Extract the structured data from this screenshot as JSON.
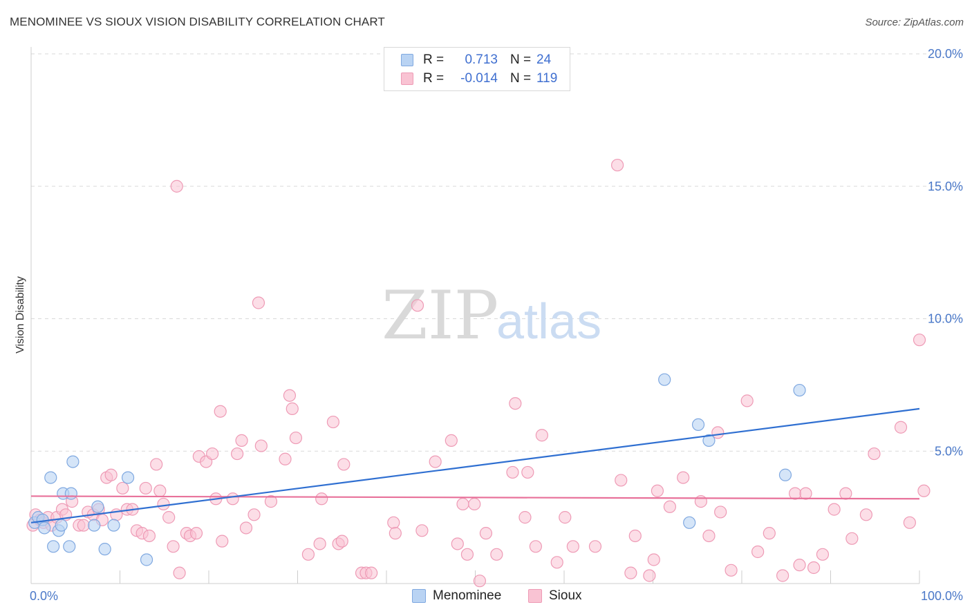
{
  "header": {
    "title": "MENOMINEE VS SIOUX VISION DISABILITY CORRELATION CHART",
    "source": "Source: ZipAtlas.com"
  },
  "watermark": {
    "zip": "ZIP",
    "atlas": "atlas"
  },
  "legend": {
    "rows": [
      {
        "r_label": "R =",
        "r_value": "0.713",
        "n_label": "N =",
        "n_value": "24"
      },
      {
        "r_label": "R =",
        "r_value": "-0.014",
        "n_label": "N =",
        "n_value": "119"
      }
    ]
  },
  "bottom_legend": {
    "menominee": "Menominee",
    "sioux": "Sioux"
  },
  "colors": {
    "menominee_fill": "#b9d3f3",
    "menominee_stroke": "#7fa8e0",
    "menominee_line": "#2f6fd1",
    "sioux_fill": "#f9c3d3",
    "sioux_stroke": "#ee9ab5",
    "sioux_line": "#e8719a",
    "grid": "#d9d9d9",
    "axis": "#cccccc",
    "tick_text": "#4a78c8"
  },
  "chart_data": {
    "type": "scatter",
    "title": "MENOMINEE VS SIOUX VISION DISABILITY CORRELATION CHART",
    "xlabel": "",
    "ylabel": "Vision Disability",
    "xlim": [
      0,
      100
    ],
    "ylim": [
      0,
      20
    ],
    "x_tick_labels": [
      "0.0%",
      "100.0%"
    ],
    "y_ticks": [
      5,
      10,
      15,
      20
    ],
    "y_tick_labels": [
      "5.0%",
      "10.0%",
      "15.0%",
      "20.0%"
    ],
    "grid": "horizontal dashed",
    "series": [
      {
        "name": "Menominee",
        "R": 0.713,
        "N": 24,
        "trend": {
          "x": [
            0,
            100
          ],
          "y": [
            2.3,
            6.6
          ]
        },
        "points": [
          {
            "x": 0.4,
            "y": 2.3
          },
          {
            "x": 0.8,
            "y": 2.5
          },
          {
            "x": 1.3,
            "y": 2.4
          },
          {
            "x": 1.5,
            "y": 2.1
          },
          {
            "x": 2.2,
            "y": 4.0
          },
          {
            "x": 2.5,
            "y": 1.4
          },
          {
            "x": 3.1,
            "y": 2.0
          },
          {
            "x": 3.4,
            "y": 2.2
          },
          {
            "x": 3.6,
            "y": 3.4
          },
          {
            "x": 4.3,
            "y": 1.4
          },
          {
            "x": 4.5,
            "y": 3.4
          },
          {
            "x": 4.7,
            "y": 4.6
          },
          {
            "x": 7.1,
            "y": 2.2
          },
          {
            "x": 7.5,
            "y": 2.9
          },
          {
            "x": 8.3,
            "y": 1.3
          },
          {
            "x": 9.3,
            "y": 2.2
          },
          {
            "x": 10.9,
            "y": 4.0
          },
          {
            "x": 13.0,
            "y": 0.9
          },
          {
            "x": 84.9,
            "y": 4.1
          },
          {
            "x": 71.3,
            "y": 7.7
          },
          {
            "x": 75.1,
            "y": 6.0
          },
          {
            "x": 76.3,
            "y": 5.4
          },
          {
            "x": 86.5,
            "y": 7.3
          },
          {
            "x": 74.1,
            "y": 2.3
          }
        ]
      },
      {
        "name": "Sioux",
        "R": -0.014,
        "N": 119,
        "trend": {
          "x": [
            0,
            100
          ],
          "y": [
            3.3,
            3.2
          ]
        },
        "points": [
          {
            "x": 0.2,
            "y": 2.2
          },
          {
            "x": 0.5,
            "y": 2.6
          },
          {
            "x": 1.0,
            "y": 2.4
          },
          {
            "x": 1.4,
            "y": 2.3
          },
          {
            "x": 1.9,
            "y": 2.5
          },
          {
            "x": 2.3,
            "y": 2.2
          },
          {
            "x": 2.9,
            "y": 2.5
          },
          {
            "x": 3.5,
            "y": 2.8
          },
          {
            "x": 3.9,
            "y": 2.6
          },
          {
            "x": 4.6,
            "y": 3.1
          },
          {
            "x": 5.4,
            "y": 2.2
          },
          {
            "x": 5.9,
            "y": 2.2
          },
          {
            "x": 6.4,
            "y": 2.7
          },
          {
            "x": 7.0,
            "y": 2.6
          },
          {
            "x": 7.6,
            "y": 2.8
          },
          {
            "x": 8.0,
            "y": 2.4
          },
          {
            "x": 8.5,
            "y": 4.0
          },
          {
            "x": 9.0,
            "y": 4.1
          },
          {
            "x": 9.6,
            "y": 2.6
          },
          {
            "x": 10.3,
            "y": 3.6
          },
          {
            "x": 10.8,
            "y": 2.8
          },
          {
            "x": 11.4,
            "y": 2.8
          },
          {
            "x": 11.9,
            "y": 2.0
          },
          {
            "x": 12.5,
            "y": 1.9
          },
          {
            "x": 12.9,
            "y": 3.6
          },
          {
            "x": 13.3,
            "y": 1.8
          },
          {
            "x": 14.1,
            "y": 4.5
          },
          {
            "x": 14.5,
            "y": 3.5
          },
          {
            "x": 14.9,
            "y": 3.0
          },
          {
            "x": 15.5,
            "y": 2.5
          },
          {
            "x": 16.0,
            "y": 1.4
          },
          {
            "x": 16.4,
            "y": 15.0
          },
          {
            "x": 16.7,
            "y": 0.4
          },
          {
            "x": 17.5,
            "y": 1.9
          },
          {
            "x": 17.9,
            "y": 1.8
          },
          {
            "x": 18.6,
            "y": 1.9
          },
          {
            "x": 18.9,
            "y": 4.8
          },
          {
            "x": 19.7,
            "y": 4.6
          },
          {
            "x": 20.4,
            "y": 4.9
          },
          {
            "x": 20.8,
            "y": 3.2
          },
          {
            "x": 21.3,
            "y": 6.5
          },
          {
            "x": 21.5,
            "y": 1.6
          },
          {
            "x": 22.7,
            "y": 3.2
          },
          {
            "x": 23.2,
            "y": 4.9
          },
          {
            "x": 23.7,
            "y": 5.4
          },
          {
            "x": 24.2,
            "y": 2.1
          },
          {
            "x": 25.1,
            "y": 2.6
          },
          {
            "x": 25.6,
            "y": 10.6
          },
          {
            "x": 25.9,
            "y": 5.2
          },
          {
            "x": 27.0,
            "y": 3.1
          },
          {
            "x": 28.6,
            "y": 4.7
          },
          {
            "x": 29.1,
            "y": 7.1
          },
          {
            "x": 29.4,
            "y": 6.6
          },
          {
            "x": 29.8,
            "y": 5.5
          },
          {
            "x": 31.2,
            "y": 1.1
          },
          {
            "x": 32.5,
            "y": 1.5
          },
          {
            "x": 32.7,
            "y": 3.2
          },
          {
            "x": 34.0,
            "y": 6.1
          },
          {
            "x": 34.6,
            "y": 1.5
          },
          {
            "x": 35.0,
            "y": 1.6
          },
          {
            "x": 35.2,
            "y": 4.5
          },
          {
            "x": 37.2,
            "y": 0.4
          },
          {
            "x": 37.7,
            "y": 0.4
          },
          {
            "x": 38.3,
            "y": 0.4
          },
          {
            "x": 40.8,
            "y": 2.3
          },
          {
            "x": 41.0,
            "y": 1.9
          },
          {
            "x": 43.5,
            "y": 10.5
          },
          {
            "x": 44.0,
            "y": 2.0
          },
          {
            "x": 45.5,
            "y": 4.6
          },
          {
            "x": 47.3,
            "y": 5.4
          },
          {
            "x": 48.0,
            "y": 1.5
          },
          {
            "x": 48.6,
            "y": 3.0
          },
          {
            "x": 49.1,
            "y": 1.1
          },
          {
            "x": 49.9,
            "y": 3.0
          },
          {
            "x": 50.5,
            "y": 0.1
          },
          {
            "x": 51.2,
            "y": 1.9
          },
          {
            "x": 52.4,
            "y": 1.1
          },
          {
            "x": 54.2,
            "y": 4.2
          },
          {
            "x": 54.5,
            "y": 6.8
          },
          {
            "x": 55.6,
            "y": 2.5
          },
          {
            "x": 55.9,
            "y": 4.2
          },
          {
            "x": 56.8,
            "y": 1.4
          },
          {
            "x": 57.5,
            "y": 5.6
          },
          {
            "x": 59.2,
            "y": 0.8
          },
          {
            "x": 60.1,
            "y": 2.5
          },
          {
            "x": 61.0,
            "y": 1.4
          },
          {
            "x": 63.5,
            "y": 1.4
          },
          {
            "x": 66.0,
            "y": 15.8
          },
          {
            "x": 66.4,
            "y": 3.9
          },
          {
            "x": 67.5,
            "y": 0.4
          },
          {
            "x": 68.0,
            "y": 1.8
          },
          {
            "x": 69.6,
            "y": 0.3
          },
          {
            "x": 70.1,
            "y": 0.9
          },
          {
            "x": 70.5,
            "y": 3.5
          },
          {
            "x": 71.9,
            "y": 2.9
          },
          {
            "x": 73.4,
            "y": 4.0
          },
          {
            "x": 75.4,
            "y": 3.1
          },
          {
            "x": 76.3,
            "y": 1.8
          },
          {
            "x": 77.3,
            "y": 5.7
          },
          {
            "x": 77.6,
            "y": 2.7
          },
          {
            "x": 78.8,
            "y": 0.5
          },
          {
            "x": 80.6,
            "y": 6.9
          },
          {
            "x": 81.8,
            "y": 1.2
          },
          {
            "x": 83.1,
            "y": 1.9
          },
          {
            "x": 84.6,
            "y": 0.3
          },
          {
            "x": 86.0,
            "y": 3.4
          },
          {
            "x": 86.5,
            "y": 0.7
          },
          {
            "x": 87.2,
            "y": 3.4
          },
          {
            "x": 88.1,
            "y": 0.6
          },
          {
            "x": 89.1,
            "y": 1.1
          },
          {
            "x": 90.4,
            "y": 2.8
          },
          {
            "x": 91.7,
            "y": 3.4
          },
          {
            "x": 92.4,
            "y": 1.7
          },
          {
            "x": 94.0,
            "y": 2.6
          },
          {
            "x": 94.9,
            "y": 4.9
          },
          {
            "x": 97.9,
            "y": 5.9
          },
          {
            "x": 98.9,
            "y": 2.3
          },
          {
            "x": 100.0,
            "y": 9.2
          },
          {
            "x": 100.5,
            "y": 3.5
          }
        ]
      }
    ]
  }
}
